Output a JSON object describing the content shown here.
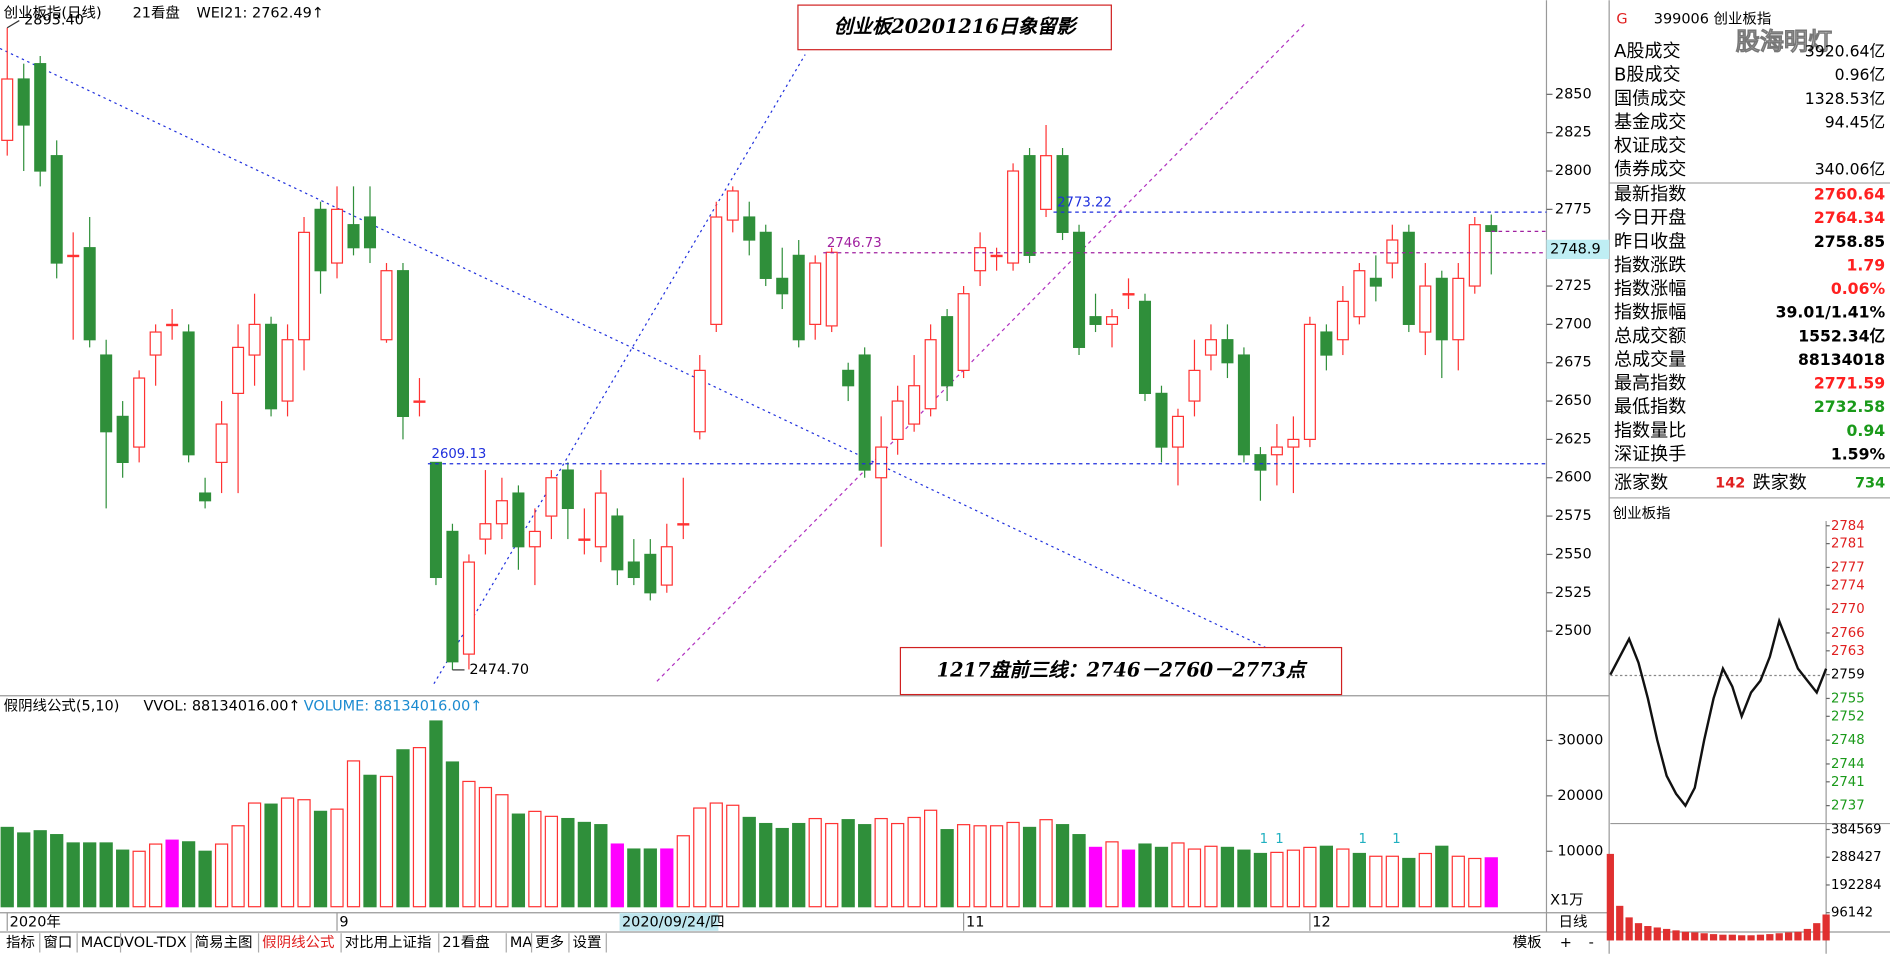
{
  "header": {
    "name": "创业板指(日线)",
    "tab": "21看盘",
    "wei": "WEI21: 2762.49↑",
    "watermark": "股海明灯"
  },
  "chart_data": {
    "type": "candlestick",
    "title": "创业板20201216日象留影",
    "annotation": "1217盘前三线：2746－2760－2773点",
    "categories": [
      "2020年",
      null,
      null,
      null,
      null,
      null,
      null,
      null,
      null,
      null,
      null,
      null,
      null,
      null,
      null,
      null,
      null,
      null,
      null,
      null,
      "9",
      null,
      null,
      null,
      null,
      null,
      null,
      null,
      null,
      null,
      null,
      null,
      null,
      null,
      null,
      null,
      null,
      null,
      null,
      null,
      null,
      null,
      null,
      null,
      null,
      null,
      null,
      null,
      null,
      null,
      null,
      null,
      null,
      null,
      null,
      null,
      null,
      null,
      "11",
      null,
      null,
      null,
      null,
      null,
      null,
      null,
      null,
      null,
      null,
      null,
      null,
      null,
      null,
      null,
      null,
      null,
      null,
      null,
      null,
      "12",
      null,
      null,
      null,
      null,
      null,
      null,
      null,
      null,
      null,
      null,
      null
    ],
    "cursor_date": "2020/09/24/四",
    "open": [
      2820,
      2860,
      2870,
      2810,
      2745,
      2750,
      2680,
      2640,
      2620,
      2680,
      2700,
      2695,
      2590,
      2610,
      2655,
      2680,
      2700,
      2650,
      2690,
      2775,
      2740,
      2765,
      2770,
      2690,
      2735,
      2650,
      2610,
      2565,
      2485,
      2560,
      2570,
      2590,
      2555,
      2575,
      2605,
      2560,
      2555,
      2575,
      2545,
      2550,
      2530,
      2570,
      2630,
      2700,
      2768,
      2770,
      2760,
      2730,
      2745,
      2700,
      2699,
      2670,
      2680,
      2600,
      2625,
      2635,
      2645,
      2705,
      2670,
      2735,
      2745,
      2740,
      2810,
      2775,
      2810,
      2760,
      2705,
      2700,
      2720,
      2715,
      2655,
      2620,
      2650,
      2680,
      2690,
      2680,
      2615,
      2615,
      2620,
      2625,
      2695,
      2690,
      2705,
      2730,
      2740,
      2760,
      2695,
      2730,
      2690,
      2725,
      2764.34
    ],
    "high": [
      2893.4,
      2870,
      2875,
      2820,
      2760,
      2770,
      2690,
      2650,
      2670,
      2700,
      2710,
      2700,
      2600,
      2650,
      2700,
      2720,
      2705,
      2700,
      2770,
      2780,
      2790,
      2790,
      2790,
      2740,
      2740,
      2665,
      2610,
      2570,
      2550,
      2605,
      2600,
      2595,
      2580,
      2605,
      2610,
      2580,
      2605,
      2580,
      2560,
      2560,
      2570,
      2600,
      2680,
      2780,
      2790,
      2780,
      2765,
      2750,
      2755,
      2745,
      2750,
      2675,
      2685,
      2640,
      2660,
      2680,
      2700,
      2710,
      2725,
      2760,
      2750,
      2805,
      2815,
      2830,
      2815,
      2765,
      2720,
      2710,
      2730,
      2720,
      2660,
      2645,
      2690,
      2700,
      2700,
      2685,
      2620,
      2635,
      2640,
      2705,
      2700,
      2725,
      2740,
      2745,
      2765,
      2765,
      2740,
      2735,
      2740,
      2770,
      2771.59
    ],
    "low": [
      2810,
      2800,
      2790,
      2730,
      2690,
      2685,
      2580,
      2600,
      2610,
      2660,
      2690,
      2610,
      2580,
      2590,
      2590,
      2660,
      2640,
      2640,
      2670,
      2720,
      2730,
      2745,
      2740,
      2688,
      2625,
      2640,
      2530,
      2474.7,
      2475,
      2550,
      2560,
      2540,
      2530,
      2560,
      2560,
      2550,
      2545,
      2530,
      2530,
      2520,
      2525,
      2560,
      2625,
      2695,
      2760,
      2745,
      2725,
      2710,
      2685,
      2690,
      2695,
      2650,
      2600,
      2555,
      2615,
      2630,
      2640,
      2650,
      2665,
      2725,
      2735,
      2735,
      2740,
      2770,
      2755,
      2680,
      2695,
      2685,
      2710,
      2650,
      2610,
      2595,
      2640,
      2670,
      2665,
      2610,
      2585,
      2595,
      2590,
      2620,
      2670,
      2680,
      2700,
      2715,
      2730,
      2695,
      2680,
      2665,
      2670,
      2720,
      2732.58
    ],
    "close": [
      2860,
      2830,
      2800,
      2740,
      2745,
      2690,
      2630,
      2610,
      2665,
      2695,
      2700,
      2615,
      2585,
      2635,
      2685,
      2700,
      2645,
      2690,
      2760,
      2735,
      2775,
      2750,
      2750,
      2735,
      2640,
      2650,
      2535,
      2480,
      2545,
      2570,
      2585,
      2555,
      2565,
      2600,
      2580,
      2560,
      2590,
      2540,
      2535,
      2525,
      2555,
      2570,
      2670,
      2770,
      2787,
      2755,
      2730,
      2720,
      2690,
      2740,
      2747,
      2660,
      2605,
      2620,
      2650,
      2660,
      2690,
      2660,
      2720,
      2750,
      2745,
      2800,
      2745,
      2810,
      2760,
      2685,
      2700,
      2705,
      2720,
      2655,
      2620,
      2640,
      2670,
      2690,
      2675,
      2615,
      2605,
      2620,
      2625,
      2700,
      2680,
      2715,
      2735,
      2725,
      2755,
      2700,
      2725,
      2690,
      2730,
      2765,
      2760.64
    ],
    "up_color": "#ff3232",
    "down_color": "#2f8f3a",
    "ylim": [
      2459.4,
      2907.4
    ],
    "yticks": [
      2500,
      2525,
      2550,
      2575,
      2600,
      2625,
      2650,
      2675,
      2700,
      2725,
      2750,
      2775,
      2800,
      2825,
      2850
    ],
    "high_mark": {
      "value": 2893.4,
      "label": "2893.40"
    },
    "low_mark": {
      "value": 2474.7,
      "label": "2474.70"
    },
    "levels": [
      {
        "value": 2609.13,
        "label": "2609.13",
        "color": "#1f2fdd"
      },
      {
        "value": 2746.73,
        "label": "2746.73",
        "color": "#a020a0"
      },
      {
        "value": 2773.22,
        "label": "2773.22",
        "color": "#1f2fdd"
      }
    ],
    "price_tag": 2748.9,
    "volume": {
      "title": "假阴线公式(5,10)",
      "vvol": "VVOL: 88134016.00↑",
      "vol_label": "VOLUME: 88134016.00↑",
      "unit": "X1万",
      "values": [
        14300,
        13300,
        13700,
        13000,
        11500,
        11500,
        11500,
        10200,
        10000,
        11300,
        12000,
        11700,
        10000,
        11300,
        14600,
        18700,
        18500,
        19600,
        19300,
        17200,
        17600,
        26300,
        23700,
        23500,
        28300,
        28700,
        33500,
        26100,
        22600,
        21500,
        20200,
        16700,
        17200,
        16300,
        15900,
        15200,
        14800,
        11300,
        10400,
        10400,
        10400,
        12800,
        17800,
        18700,
        18300,
        16100,
        15000,
        14100,
        15000,
        15900,
        15000,
        15700,
        14800,
        15900,
        15000,
        16100,
        17400,
        13900,
        14800,
        14600,
        14600,
        15200,
        14300,
        15700,
        14800,
        13000,
        10700,
        11700,
        10200,
        11300,
        10700,
        11500,
        10400,
        10900,
        10700,
        10200,
        9600,
        9800,
        10200,
        10700,
        10900,
        10400,
        9600,
        9100,
        9100,
        8700,
        9600,
        10900,
        9100,
        8700,
        8813.4016
      ],
      "colors": [
        "#2f8f3a",
        "#2f8f3a",
        "#2f8f3a",
        "#2f8f3a",
        "#2f8f3a",
        "#2f8f3a",
        "#2f8f3a",
        "#2f8f3a",
        "#ff3232",
        "#ff3232",
        "#ff00ff",
        "#2f8f3a",
        "#2f8f3a",
        "#ff3232",
        "#ff3232",
        "#ff3232",
        "#2f8f3a",
        "#ff3232",
        "#ff3232",
        "#2f8f3a",
        "#ff3232",
        "#ff3232",
        "#2f8f3a",
        "#ff3232",
        "#2f8f3a",
        "#ff3232",
        "#2f8f3a",
        "#2f8f3a",
        "#ff3232",
        "#ff3232",
        "#ff3232",
        "#2f8f3a",
        "#ff3232",
        "#ff3232",
        "#2f8f3a",
        "#2f8f3a",
        "#2f8f3a",
        "#ff00ff",
        "#2f8f3a",
        "#2f8f3a",
        "#ff00ff",
        "#ff3232",
        "#ff3232",
        "#ff3232",
        "#ff3232",
        "#2f8f3a",
        "#2f8f3a",
        "#2f8f3a",
        "#2f8f3a",
        "#ff3232",
        "#ff3232",
        "#2f8f3a",
        "#2f8f3a",
        "#ff3232",
        "#ff3232",
        "#ff3232",
        "#ff3232",
        "#2f8f3a",
        "#ff3232",
        "#ff3232",
        "#ff3232",
        "#ff3232",
        "#2f8f3a",
        "#ff3232",
        "#2f8f3a",
        "#2f8f3a",
        "#ff00ff",
        "#ff3232",
        "#ff00ff",
        "#2f8f3a",
        "#2f8f3a",
        "#ff3232",
        "#ff3232",
        "#ff3232",
        "#2f8f3a",
        "#2f8f3a",
        "#2f8f3a",
        "#ff3232",
        "#ff3232",
        "#ff3232",
        "#2f8f3a",
        "#ff3232",
        "#2f8f3a",
        "#ff3232",
        "#ff3232",
        "#2f8f3a",
        "#ff3232",
        "#2f8f3a",
        "#ff3232",
        "#ff3232",
        "#ff00ff"
      ],
      "flags": [
        "1",
        "1",
        "1",
        "1"
      ],
      "ylim": [
        0,
        37400
      ],
      "yticks": [
        10000,
        20000,
        30000
      ]
    }
  },
  "tabs": [
    {
      "label": "指标"
    },
    {
      "label": "窗口"
    },
    {
      "label": "MACD"
    },
    {
      "label": "VOL-TDX"
    },
    {
      "label": "简易主图"
    },
    {
      "label": "假阴线公式",
      "active": true
    },
    {
      "label": "对比用上证指"
    },
    {
      "label": "21看盘"
    },
    {
      "label": "MA"
    },
    {
      "label": "更多"
    },
    {
      "label": "设置"
    }
  ],
  "right_tabs": [
    "模板",
    "日线",
    "+",
    "-"
  ],
  "quote": {
    "prefix": "G",
    "code": "399006 创业板指",
    "trade_rows": [
      {
        "label": "A股成交",
        "value": "3920.64亿"
      },
      {
        "label": "B股成交",
        "value": "0.96亿"
      },
      {
        "label": "国债成交",
        "value": "1328.53亿"
      },
      {
        "label": "基金成交",
        "value": "94.45亿"
      },
      {
        "label": "权证成交"
      },
      {
        "label": "债券成交",
        "value": "340.06亿"
      }
    ],
    "index_rows": [
      {
        "label": "最新指数",
        "value": "2760.64",
        "color": "#ff2020"
      },
      {
        "label": "今日开盘",
        "value": "2764.34",
        "color": "#ff2020"
      },
      {
        "label": "昨日收盘",
        "value": "2758.85",
        "color": "#000000"
      },
      {
        "label": "指数涨跌",
        "value": "1.79",
        "color": "#ff2020"
      },
      {
        "label": "指数涨幅",
        "value": "0.06%",
        "color": "#ff2020"
      },
      {
        "label": "指数振幅",
        "value": "39.01/1.41%",
        "color": "#000000"
      },
      {
        "label": "总成交额",
        "value": "1552.34亿",
        "color": "#000000"
      },
      {
        "label": "总成交量",
        "value": "88134018",
        "color": "#000000"
      },
      {
        "label": "最高指数",
        "value": "2771.59",
        "color": "#ff2020"
      },
      {
        "label": "最低指数",
        "value": "2732.58",
        "color": "#1a9a1a"
      },
      {
        "label": "指数量比",
        "value": "0.94",
        "color": "#1a9a1a"
      },
      {
        "label": "深证换手",
        "value": "1.59%",
        "color": "#000000"
      }
    ],
    "up_label": "涨家数",
    "up_count": 142,
    "down_label": "跌家数",
    "down_count": 734
  },
  "intraday": {
    "title": "创业板指",
    "prev_close": 2758.85,
    "ylim": [
      2734.6,
      2784.8
    ],
    "yticks": [
      2784,
      2781,
      2777,
      2774,
      2770,
      2766,
      2763,
      2759,
      2755,
      2752,
      2748,
      2744,
      2741,
      2737
    ],
    "prices": [
      2759,
      2762,
      2765,
      2761,
      2755,
      2748,
      2742,
      2739,
      2737,
      2740,
      2748,
      2755,
      2760,
      2757,
      2752,
      2756,
      2758,
      2762,
      2768,
      2764,
      2760,
      2758,
      2756,
      2760
    ],
    "volumes": [
      300000,
      120000,
      80000,
      60000,
      50000,
      45000,
      40000,
      35000,
      30000,
      28000,
      25000,
      22000,
      20000,
      20000,
      18000,
      18000,
      20000,
      22000,
      25000,
      28000,
      30000,
      40000,
      60000,
      90000
    ],
    "vlim": [
      0,
      401000
    ],
    "vticks": [
      384569,
      288427,
      192284,
      96142
    ],
    "line_color": "#111111",
    "vol_color": "#e03030"
  }
}
